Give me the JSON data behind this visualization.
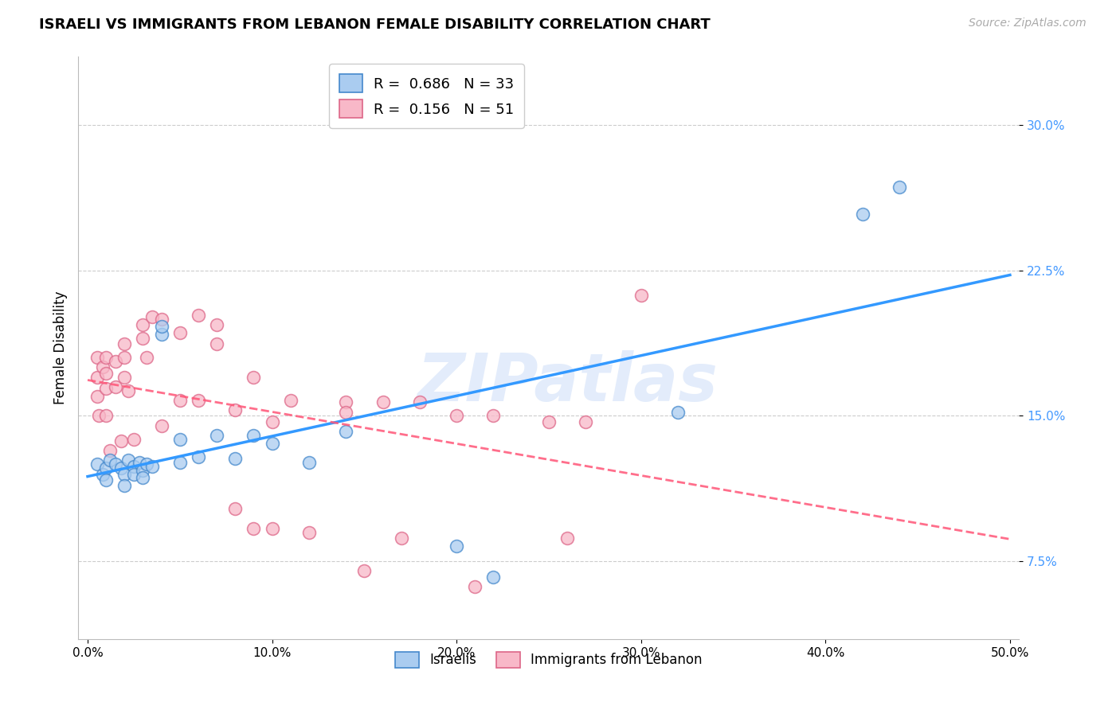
{
  "title": "ISRAELI VS IMMIGRANTS FROM LEBANON FEMALE DISABILITY CORRELATION CHART",
  "source": "Source: ZipAtlas.com",
  "ylabel": "Female Disability",
  "xlim": [
    -0.005,
    0.505
  ],
  "ylim": [
    0.035,
    0.335
  ],
  "yticks": [
    0.075,
    0.15,
    0.225,
    0.3
  ],
  "ytick_labels": [
    "7.5%",
    "15.0%",
    "22.5%",
    "30.0%"
  ],
  "xticks": [
    0.0,
    0.1,
    0.2,
    0.3,
    0.4,
    0.5
  ],
  "xtick_labels": [
    "0.0%",
    "10.0%",
    "20.0%",
    "30.0%",
    "40.0%",
    "50.0%"
  ],
  "legend_r_blue": "0.686",
  "legend_n_blue": "33",
  "legend_r_pink": "0.156",
  "legend_n_pink": "51",
  "blue_fc": "#aaccf0",
  "blue_ec": "#4488cc",
  "pink_fc": "#f8b8c8",
  "pink_ec": "#dd6688",
  "blue_line": "#3399ff",
  "pink_line": "#ff5577",
  "ytick_color": "#4499ff",
  "watermark_text": "ZIPatlas",
  "israelis_x": [
    0.005,
    0.008,
    0.01,
    0.01,
    0.012,
    0.015,
    0.018,
    0.02,
    0.02,
    0.022,
    0.025,
    0.025,
    0.028,
    0.03,
    0.03,
    0.032,
    0.035,
    0.04,
    0.04,
    0.05,
    0.05,
    0.06,
    0.07,
    0.08,
    0.09,
    0.1,
    0.12,
    0.14,
    0.2,
    0.22,
    0.32,
    0.42,
    0.44
  ],
  "israelis_y": [
    0.125,
    0.12,
    0.123,
    0.117,
    0.127,
    0.125,
    0.123,
    0.12,
    0.114,
    0.127,
    0.124,
    0.12,
    0.126,
    0.122,
    0.118,
    0.125,
    0.124,
    0.192,
    0.196,
    0.138,
    0.126,
    0.129,
    0.14,
    0.128,
    0.14,
    0.136,
    0.126,
    0.142,
    0.083,
    0.067,
    0.152,
    0.254,
    0.268
  ],
  "lebanon_x": [
    0.005,
    0.005,
    0.005,
    0.006,
    0.008,
    0.01,
    0.01,
    0.01,
    0.01,
    0.012,
    0.015,
    0.015,
    0.018,
    0.02,
    0.02,
    0.02,
    0.022,
    0.025,
    0.03,
    0.03,
    0.032,
    0.035,
    0.04,
    0.04,
    0.05,
    0.05,
    0.06,
    0.06,
    0.07,
    0.07,
    0.08,
    0.08,
    0.09,
    0.09,
    0.1,
    0.1,
    0.11,
    0.12,
    0.14,
    0.14,
    0.15,
    0.16,
    0.17,
    0.18,
    0.2,
    0.21,
    0.22,
    0.25,
    0.26,
    0.27,
    0.3
  ],
  "lebanon_y": [
    0.18,
    0.17,
    0.16,
    0.15,
    0.175,
    0.18,
    0.172,
    0.164,
    0.15,
    0.132,
    0.178,
    0.165,
    0.137,
    0.187,
    0.18,
    0.17,
    0.163,
    0.138,
    0.197,
    0.19,
    0.18,
    0.201,
    0.2,
    0.145,
    0.193,
    0.158,
    0.202,
    0.158,
    0.197,
    0.187,
    0.153,
    0.102,
    0.17,
    0.092,
    0.147,
    0.092,
    0.158,
    0.09,
    0.157,
    0.152,
    0.07,
    0.157,
    0.087,
    0.157,
    0.15,
    0.062,
    0.15,
    0.147,
    0.087,
    0.147,
    0.212
  ]
}
